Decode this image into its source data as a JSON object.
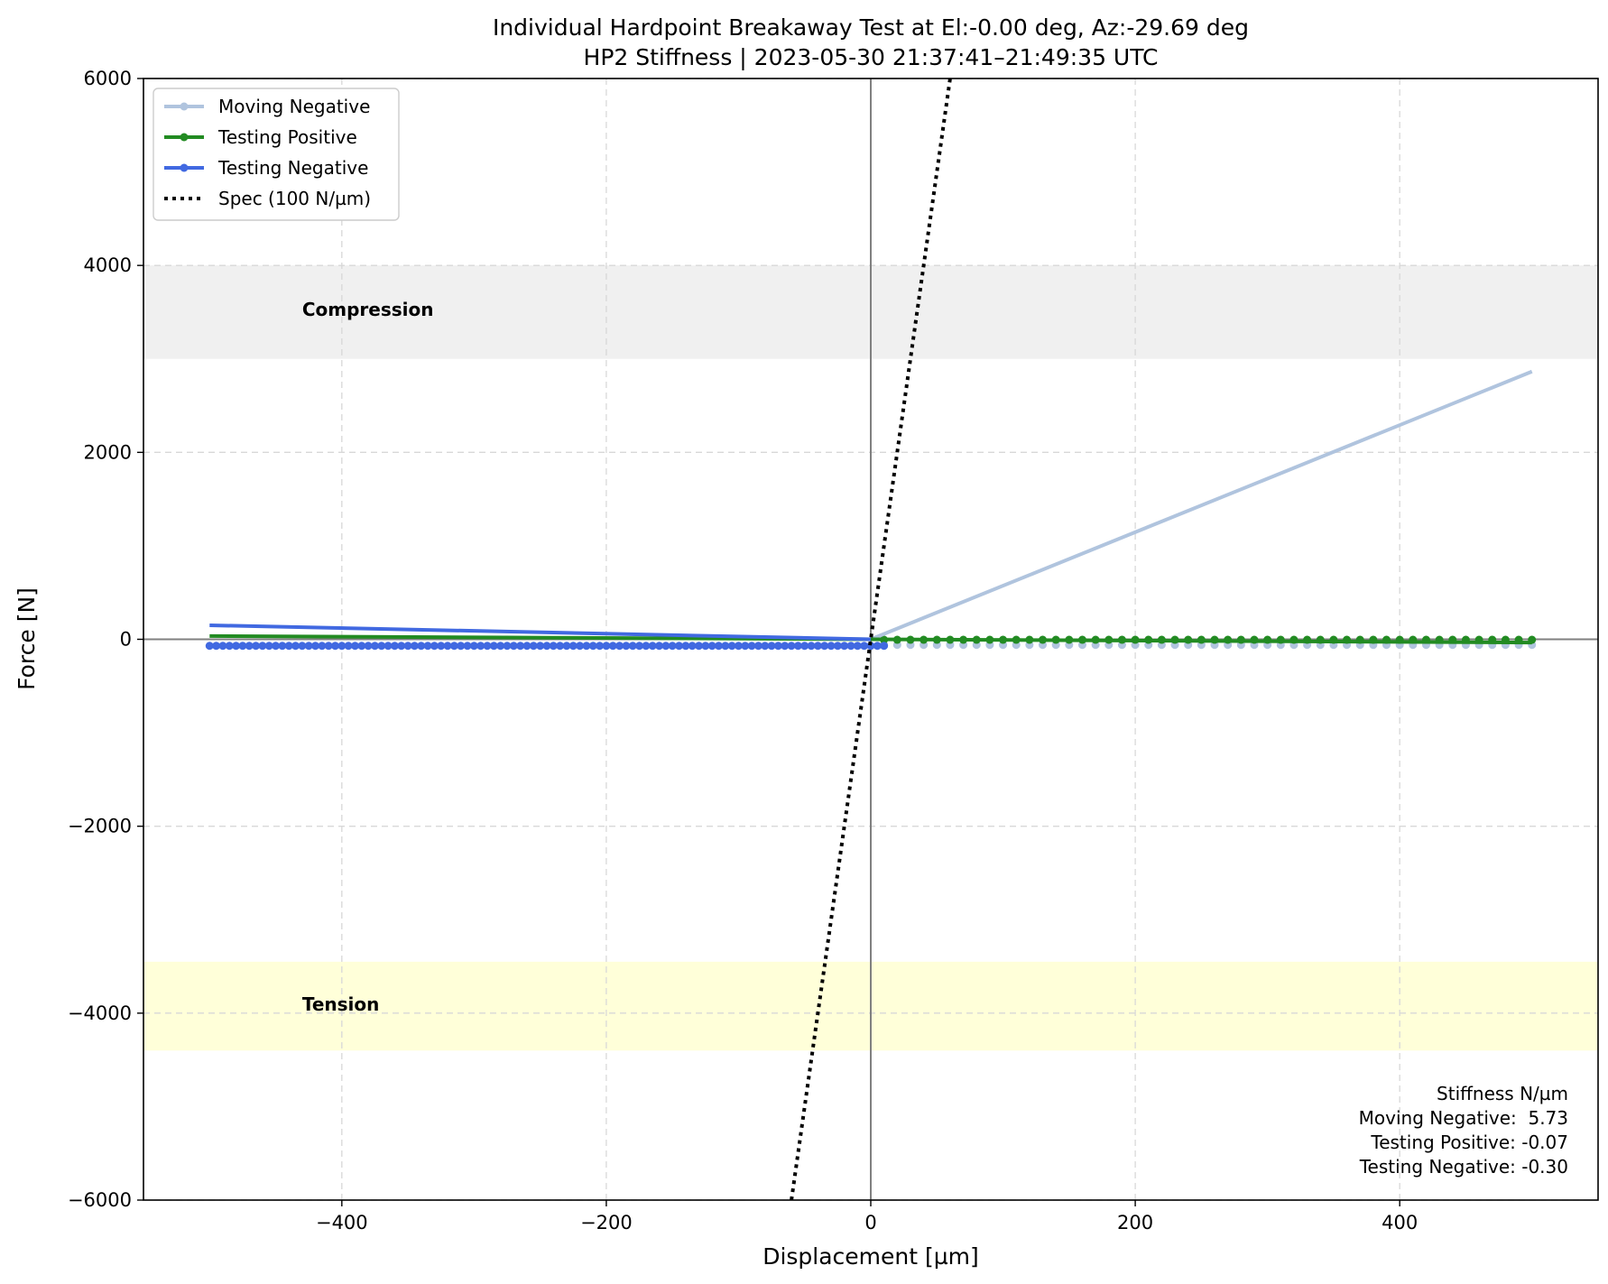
{
  "chart_data": {
    "type": "line",
    "title": "Individual Hardpoint Breakaway Test at El:-0.00 deg, Az:-29.69 deg",
    "subtitle": "HP2 Stiffness | 2023-05-30 21:37:41–21:49:35 UTC",
    "xlabel": "Displacement [µm]",
    "ylabel": "Force [N]",
    "xlim": [
      -550,
      550
    ],
    "ylim": [
      -6000,
      6000
    ],
    "xticks": [
      -400,
      -200,
      0,
      200,
      400
    ],
    "yticks": [
      -6000,
      -4000,
      -2000,
      0,
      2000,
      4000,
      6000
    ],
    "xtick_labels": [
      "−400",
      "−200",
      "0",
      "200",
      "400"
    ],
    "ytick_labels": [
      "−6000",
      "−4000",
      "−2000",
      "0",
      "2000",
      "4000",
      "6000"
    ],
    "grid": true,
    "legend_position": "top-left",
    "bands": [
      {
        "label": "Compression",
        "y_range": [
          3000,
          4000
        ],
        "color": "#f0f0f0"
      },
      {
        "label": "Tension",
        "y_range": [
          -4400,
          -3450
        ],
        "color": "#ffffd9"
      }
    ],
    "series": [
      {
        "name": "Moving Negative",
        "color": "#b0c4de",
        "points": {
          "x_range": [
            10,
            500
          ],
          "step": 10,
          "y": -60
        },
        "fit_line": {
          "x": [
            0,
            500
          ],
          "y": [
            0,
            2865
          ]
        }
      },
      {
        "name": "Testing Positive",
        "color": "#228b22",
        "points": {
          "x_range": [
            10,
            500
          ],
          "step": 10,
          "y": -5
        },
        "fit_line": {
          "x": [
            -500,
            500
          ],
          "y": [
            35,
            -35
          ]
        }
      },
      {
        "name": "Testing Negative",
        "color": "#4169e1",
        "points": {
          "x_range": [
            -500,
            10
          ],
          "step": 5,
          "y": -70
        },
        "fit_line": {
          "x": [
            -500,
            0
          ],
          "y": [
            150,
            0
          ]
        }
      },
      {
        "name": "Spec (100 N/µm)",
        "color": "#000000",
        "style": "dotted",
        "x": [
          -60,
          60
        ],
        "y": [
          -6000,
          6000
        ]
      }
    ],
    "stats": {
      "header": "Stiffness N/µm",
      "lines": [
        "Moving Negative:  5.73",
        "Testing Positive: -0.07",
        "Testing Negative: -0.30"
      ]
    }
  }
}
